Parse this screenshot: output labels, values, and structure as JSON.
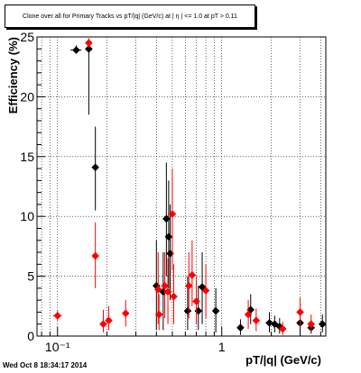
{
  "title": "Clone over all for Primary Tracks vs pT/|q| (GeV/c) at | η | <= 1.0 at pT > 0.11",
  "timestamp": "Wed Oct  8 18:34:17 2014",
  "chart_data": {
    "type": "scatter",
    "xlabel": "pT/|q| (GeV/c)",
    "ylabel": "Efficiency (%)",
    "x_scale": "log",
    "xlim": [
      0.075,
      4.3
    ],
    "ylim": [
      0,
      25
    ],
    "x_ticklabels": [
      "10⁻¹",
      "1"
    ],
    "y_ticklabels": [
      "0",
      "5",
      "10",
      "15",
      "20",
      "25"
    ],
    "grid": true,
    "colors": {
      "black_series": "#000000",
      "red_series": "#ff0000"
    },
    "series": [
      {
        "color": "black",
        "points": [
          {
            "x": 0.13,
            "y": 23.9,
            "ylo": 23.6,
            "yhi": 24.3,
            "xerr": 0.01
          },
          {
            "x": 0.155,
            "y": 24.0,
            "ylo": 18.5,
            "yhi": 24.8
          },
          {
            "x": 0.17,
            "y": 14.1,
            "ylo": 10.5,
            "yhi": 17.5
          },
          {
            "x": 0.4,
            "y": 4.2,
            "ylo": 0.5,
            "yhi": 8.0
          },
          {
            "x": 0.44,
            "y": 3.7,
            "ylo": 0.5,
            "yhi": 7.0
          },
          {
            "x": 0.46,
            "y": 9.8,
            "ylo": 5.0,
            "yhi": 14.5
          },
          {
            "x": 0.475,
            "y": 8.3,
            "ylo": 4.0,
            "yhi": 13.0
          },
          {
            "x": 0.485,
            "y": 6.9,
            "ylo": 3.0,
            "yhi": 11.0
          },
          {
            "x": 0.62,
            "y": 2.1,
            "ylo": 0.5,
            "yhi": 5.0
          },
          {
            "x": 0.72,
            "y": 2.1,
            "ylo": 0.5,
            "yhi": 4.2
          },
          {
            "x": 0.76,
            "y": 4.1,
            "ylo": 1.0,
            "yhi": 7.0
          },
          {
            "x": 0.92,
            "y": 2.1,
            "ylo": 0.3,
            "yhi": 4.0
          },
          {
            "x": 1.3,
            "y": 0.7,
            "ylo": 0.1,
            "yhi": 1.4
          },
          {
            "x": 1.5,
            "y": 2.2,
            "ylo": 1.0,
            "yhi": 3.5
          },
          {
            "x": 1.95,
            "y": 1.1,
            "ylo": 0.3,
            "yhi": 2.0
          },
          {
            "x": 2.1,
            "y": 1.0,
            "ylo": 0.3,
            "yhi": 1.7
          },
          {
            "x": 2.25,
            "y": 0.8,
            "ylo": 0.2,
            "yhi": 1.5
          },
          {
            "x": 3.0,
            "y": 1.1,
            "ylo": 0.3,
            "yhi": 2.0
          },
          {
            "x": 3.5,
            "y": 0.7,
            "ylo": 0.2,
            "yhi": 1.3
          },
          {
            "x": 4.1,
            "y": 1.0,
            "ylo": 0.3,
            "yhi": 1.8
          }
        ]
      },
      {
        "color": "red",
        "points": [
          {
            "x": 0.1,
            "y": 1.7,
            "ylo": 1.3,
            "yhi": 2.1,
            "xerr": 0.006
          },
          {
            "x": 0.155,
            "y": 24.5,
            "ylo": 24.1,
            "yhi": 24.9
          },
          {
            "x": 0.17,
            "y": 6.7,
            "ylo": 4.0,
            "yhi": 9.5
          },
          {
            "x": 0.19,
            "y": 1.0,
            "ylo": 0.3,
            "yhi": 2.2
          },
          {
            "x": 0.205,
            "y": 1.3,
            "ylo": 0.5,
            "yhi": 2.5
          },
          {
            "x": 0.26,
            "y": 1.9,
            "ylo": 0.8,
            "yhi": 3.0
          },
          {
            "x": 0.41,
            "y": 3.9,
            "ylo": 1.0,
            "yhi": 7.0
          },
          {
            "x": 0.415,
            "y": 1.8,
            "ylo": 0.5,
            "yhi": 3.5
          },
          {
            "x": 0.45,
            "y": 4.2,
            "ylo": 1.5,
            "yhi": 7.0
          },
          {
            "x": 0.47,
            "y": 3.7,
            "ylo": 1.0,
            "yhi": 6.5
          },
          {
            "x": 0.5,
            "y": 10.2,
            "ylo": 5.5,
            "yhi": 14.0
          },
          {
            "x": 0.51,
            "y": 3.3,
            "ylo": 1.0,
            "yhi": 6.0
          },
          {
            "x": 0.63,
            "y": 4.2,
            "ylo": 1.5,
            "yhi": 7.0
          },
          {
            "x": 0.66,
            "y": 5.1,
            "ylo": 2.5,
            "yhi": 8.0
          },
          {
            "x": 0.7,
            "y": 2.9,
            "ylo": 1.0,
            "yhi": 5.0
          },
          {
            "x": 0.8,
            "y": 3.8,
            "ylo": 1.5,
            "yhi": 6.0
          },
          {
            "x": 1.45,
            "y": 1.8,
            "ylo": 0.6,
            "yhi": 3.0
          },
          {
            "x": 1.62,
            "y": 1.3,
            "ylo": 0.4,
            "yhi": 2.3
          },
          {
            "x": 2.35,
            "y": 0.6,
            "ylo": 0.1,
            "yhi": 1.2
          },
          {
            "x": 3.0,
            "y": 2.0,
            "ylo": 0.8,
            "yhi": 3.2
          },
          {
            "x": 3.5,
            "y": 1.0,
            "ylo": 0.3,
            "yhi": 1.8
          }
        ]
      }
    ]
  }
}
